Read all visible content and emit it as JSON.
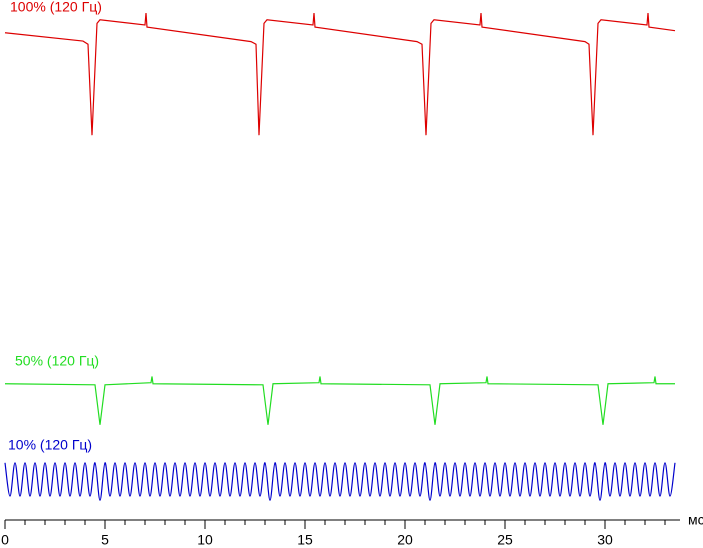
{
  "chart_data": {
    "type": "line",
    "xlabel": "мс",
    "xlim": [
      0,
      34.9
    ],
    "ylim": [
      0,
      100
    ],
    "xticks": [
      0,
      5,
      10,
      15,
      20,
      25,
      30
    ],
    "xminor_step": 1,
    "series": [
      {
        "name": "100% (120 Гц)",
        "color": "#dd0000",
        "smooth": false,
        "x": [
          0,
          3.9,
          4.15,
          4.35,
          4.6,
          4.75,
          7.0,
          7.05,
          7.1,
          12.3,
          12.55,
          12.7,
          12.95,
          13.1,
          15.4,
          15.45,
          15.5,
          20.6,
          20.85,
          21.05,
          21.3,
          21.45,
          23.75,
          23.8,
          23.85,
          29.0,
          29.2,
          29.4,
          29.65,
          29.8,
          32.1,
          32.15,
          32.2,
          33.5
        ],
        "values": [
          93.7,
          92.1,
          91.5,
          74.0,
          95.5,
          96.2,
          95.2,
          97.5,
          94.8,
          92.0,
          91.5,
          74.0,
          95.5,
          96.2,
          95.2,
          97.5,
          94.8,
          92.0,
          91.5,
          74.0,
          95.5,
          96.2,
          95.2,
          97.5,
          94.8,
          92.0,
          91.5,
          74.0,
          95.5,
          96.2,
          95.2,
          97.5,
          94.8,
          94.1
        ]
      },
      {
        "name": "50% (120 Гц)",
        "color": "#22dd22",
        "smooth": false,
        "x": [
          0,
          4.5,
          4.75,
          5.0,
          7.3,
          7.35,
          7.4,
          12.9,
          13.15,
          13.4,
          15.7,
          15.75,
          15.8,
          21.25,
          21.5,
          21.75,
          24.05,
          24.1,
          24.15,
          29.65,
          29.9,
          30.15,
          32.45,
          32.5,
          32.55,
          33.5
        ],
        "values": [
          26.2,
          26.0,
          18.3,
          26.0,
          26.4,
          27.6,
          26.2,
          26.0,
          18.3,
          26.2,
          26.4,
          27.6,
          26.2,
          26.0,
          18.3,
          26.2,
          26.4,
          27.6,
          26.2,
          26.0,
          18.3,
          26.2,
          26.4,
          27.6,
          26.2,
          26.2
        ]
      },
      {
        "name": "10% (120 Гц)",
        "color": "#0000cc",
        "smooth": true,
        "x": [
          0,
          0.25,
          0.5,
          0.75,
          1,
          1.25,
          1.5,
          1.75,
          2,
          2.25,
          2.5,
          2.75,
          3,
          3.25,
          3.5,
          3.75,
          4,
          4.25,
          4.5,
          4.75,
          5,
          5.25,
          5.5,
          5.75,
          6,
          6.25,
          6.5,
          6.75,
          7,
          7.25,
          7.5,
          7.75,
          8,
          8.25,
          8.5,
          8.75,
          9,
          9.25,
          9.5,
          9.75,
          10,
          10.25,
          10.5,
          10.75,
          11,
          11.25,
          11.5,
          11.75,
          12,
          12.25,
          12.5,
          12.75,
          13,
          13.25,
          13.5,
          13.75,
          14,
          14.25,
          14.5,
          14.75,
          15,
          15.25,
          15.5,
          15.75,
          16,
          16.25,
          16.5,
          16.75,
          17,
          17.25,
          17.5,
          17.75,
          18,
          18.25,
          18.5,
          18.75,
          19,
          19.25,
          19.5,
          19.75,
          20,
          20.25,
          20.5,
          20.75,
          21,
          21.25,
          21.5,
          21.75,
          22,
          22.25,
          22.5,
          22.75,
          23,
          23.25,
          23.5,
          23.75,
          24,
          24.25,
          24.5,
          24.75,
          25,
          25.25,
          25.5,
          25.75,
          26,
          26.25,
          26.5,
          26.75,
          27,
          27.25,
          27.5,
          27.75,
          28,
          28.25,
          28.5,
          28.75,
          29,
          29.25,
          29.5,
          29.75,
          30,
          30.25,
          30.5,
          30.75,
          31,
          31.25,
          31.5,
          31.75,
          32,
          32.25,
          32.5,
          32.75,
          33,
          33.25,
          33.5
        ],
        "values": [
          11.0,
          4.6,
          11.0,
          4.6,
          11.0,
          4.6,
          11.0,
          4.6,
          11.0,
          4.6,
          11.0,
          4.6,
          11.0,
          4.6,
          11.0,
          4.6,
          11.0,
          4.6,
          11.0,
          3.8,
          11.0,
          4.6,
          11.0,
          4.6,
          11.0,
          4.6,
          11.0,
          4.6,
          11.0,
          4.6,
          11.0,
          4.6,
          11.0,
          4.6,
          11.0,
          4.6,
          11.0,
          4.6,
          11.0,
          4.6,
          11.0,
          4.6,
          11.0,
          4.6,
          11.0,
          4.6,
          11.0,
          4.6,
          11.0,
          4.6,
          11.0,
          4.6,
          11.0,
          3.8,
          11.0,
          4.6,
          11.0,
          4.6,
          11.0,
          4.6,
          11.0,
          4.6,
          11.0,
          4.6,
          11.0,
          4.6,
          11.0,
          4.6,
          11.0,
          4.6,
          11.0,
          4.6,
          11.0,
          4.6,
          11.0,
          4.6,
          11.0,
          4.6,
          11.0,
          4.6,
          11.0,
          4.6,
          11.0,
          4.6,
          11.0,
          3.8,
          11.0,
          4.6,
          11.0,
          4.6,
          11.0,
          4.6,
          11.0,
          4.6,
          11.0,
          4.6,
          11.0,
          4.6,
          11.0,
          4.6,
          11.0,
          4.6,
          11.0,
          4.6,
          11.0,
          4.6,
          11.0,
          4.6,
          11.0,
          4.6,
          11.0,
          4.6,
          11.0,
          4.6,
          11.0,
          4.6,
          11.0,
          4.6,
          11.0,
          3.8,
          11.0,
          4.6,
          11.0,
          4.6,
          11.0,
          4.6,
          11.0,
          4.6,
          11.0,
          4.6,
          11.0,
          4.6,
          11.0,
          4.6,
          11.0
        ]
      }
    ]
  }
}
